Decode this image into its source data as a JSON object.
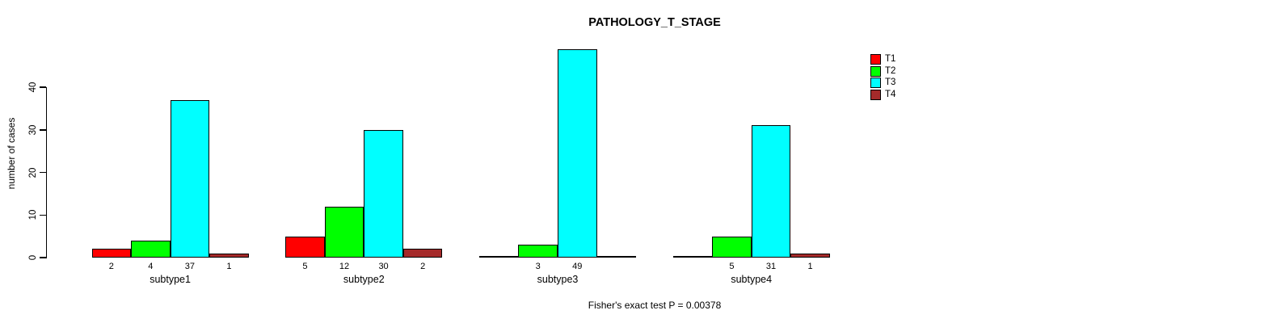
{
  "chart_data": {
    "type": "bar",
    "title": "PATHOLOGY_T_STAGE",
    "ylabel": "number of cases",
    "xlabel": "",
    "footer": "Fisher's exact test P = 0.00378",
    "categories": [
      "subtype1",
      "subtype2",
      "subtype3",
      "subtype4"
    ],
    "series": [
      {
        "name": "T1",
        "color": "#FF0000",
        "values": [
          2,
          5,
          0,
          0
        ]
      },
      {
        "name": "T2",
        "color": "#00FF00",
        "values": [
          4,
          12,
          3,
          5
        ]
      },
      {
        "name": "T3",
        "color": "#00FFFF",
        "values": [
          37,
          30,
          49,
          31
        ]
      },
      {
        "name": "T4",
        "color": "#A52A2A",
        "values": [
          1,
          2,
          0,
          1
        ]
      }
    ],
    "yticks": [
      0,
      10,
      20,
      30,
      40
    ],
    "ylim": [
      0,
      40
    ],
    "grid": false,
    "legend_position": "top-right",
    "bar_value_labels": "non-zero values printed under each bar",
    "zero_bars": "zero values drawn as flat baseline segments"
  }
}
